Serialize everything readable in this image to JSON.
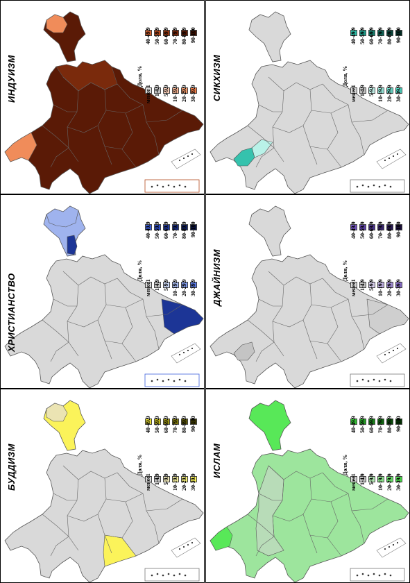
{
  "legend_title": "Доля, %",
  "legend_low_labels": [
    "менее1",
    "1-4.9",
    "5-9.9",
    "10-19.9",
    "20-29.9",
    "30-39.9"
  ],
  "legend_low_labels_hindu": [
    "менее 1",
    "1-4.9",
    "5-9.9",
    "10-19.9",
    "20-29.9",
    "30-39.9"
  ],
  "legend_high_labels": [
    "40-49.9",
    "50-59.9",
    "60-69.9",
    "70-79.9",
    "80-89.9",
    "90-100"
  ],
  "panels": [
    {
      "id": "hinduism",
      "title": "ИНДУИЗМ",
      "low_colors": [
        "#d9d9d9",
        "#bfbfbf",
        "#f3c9b4",
        "#f2b08f",
        "#f09a6c",
        "#f07e4a"
      ],
      "high_colors": [
        "#d25f2c",
        "#b4491c",
        "#93350f",
        "#752509",
        "#581a05",
        "#3d1002"
      ],
      "map_fill_main": "#5a1a06",
      "map_fill_accent": "#7a2a0c",
      "map_fill_light": "#f08c5a"
    },
    {
      "id": "sikhism",
      "title": "СИКХИЗМ",
      "low_colors": [
        "#d9d9d9",
        "#bfbfbf",
        "#c3f0e8",
        "#9ae8db",
        "#6fdccb",
        "#4fd4c0"
      ],
      "high_colors": [
        "#2fbfa9",
        "#1f9e8b",
        "#17806f",
        "#106355",
        "#0a473c",
        "#053027"
      ],
      "map_fill_main": "#d9d9d9",
      "map_fill_accent": "#35c2ad",
      "map_fill_light": "#b9f2e8"
    },
    {
      "id": "christianity",
      "title": "ХРИСТИАНСТВО",
      "low_colors": [
        "#d9d9d9",
        "#bfbfbf",
        "#c9d6f5",
        "#a6b9f0",
        "#7f9aeb",
        "#5a7ae6"
      ],
      "high_colors": [
        "#3c5fdc",
        "#2c4bc0",
        "#213b9e",
        "#182c7c",
        "#101f5c",
        "#08123f"
      ],
      "map_fill_main": "#d9d9d9",
      "map_fill_accent": "#1c3596",
      "map_fill_light": "#9fb3ee"
    },
    {
      "id": "jainism",
      "title": "ДЖАЙНИЗМ",
      "low_colors": [
        "#d9d9d9",
        "#bfbfbf",
        "#d9d0ee",
        "#bfb0e3",
        "#a58fd8",
        "#8c70cd"
      ],
      "high_colors": [
        "#7455c0",
        "#5f43a8",
        "#4c348c",
        "#3a2770",
        "#2a1b54",
        "#1b103a"
      ],
      "map_fill_main": "#d9d9d9",
      "map_fill_accent": "#c4c4c4",
      "map_fill_light": "#cfcfcf"
    },
    {
      "id": "buddhism",
      "title": "БУДДИЗМ",
      "low_colors": [
        "#d9d9d9",
        "#bfbfbf",
        "#ede6b8",
        "#f2ec9a",
        "#f7f07a",
        "#fbf35a"
      ],
      "high_colors": [
        "#e6dc30",
        "#c2b820",
        "#9d9514",
        "#7a730c",
        "#585306",
        "#3a3602"
      ],
      "map_fill_main": "#d9d9d9",
      "map_fill_accent": "#fbf35a",
      "map_fill_light": "#ebe4b3"
    },
    {
      "id": "islam",
      "title": "ИСЛАМ",
      "low_colors": [
        "#d9d9d9",
        "#bfbfbf",
        "#b5eab5",
        "#90e890",
        "#6ce86c",
        "#4fe04f"
      ],
      "high_colors": [
        "#36c436",
        "#27a327",
        "#1c861c",
        "#126912",
        "#0b4d0b",
        "#053305"
      ],
      "map_fill_main": "#9de59d",
      "map_fill_accent": "#58e858",
      "map_fill_light": "#b8dcb8"
    }
  ]
}
